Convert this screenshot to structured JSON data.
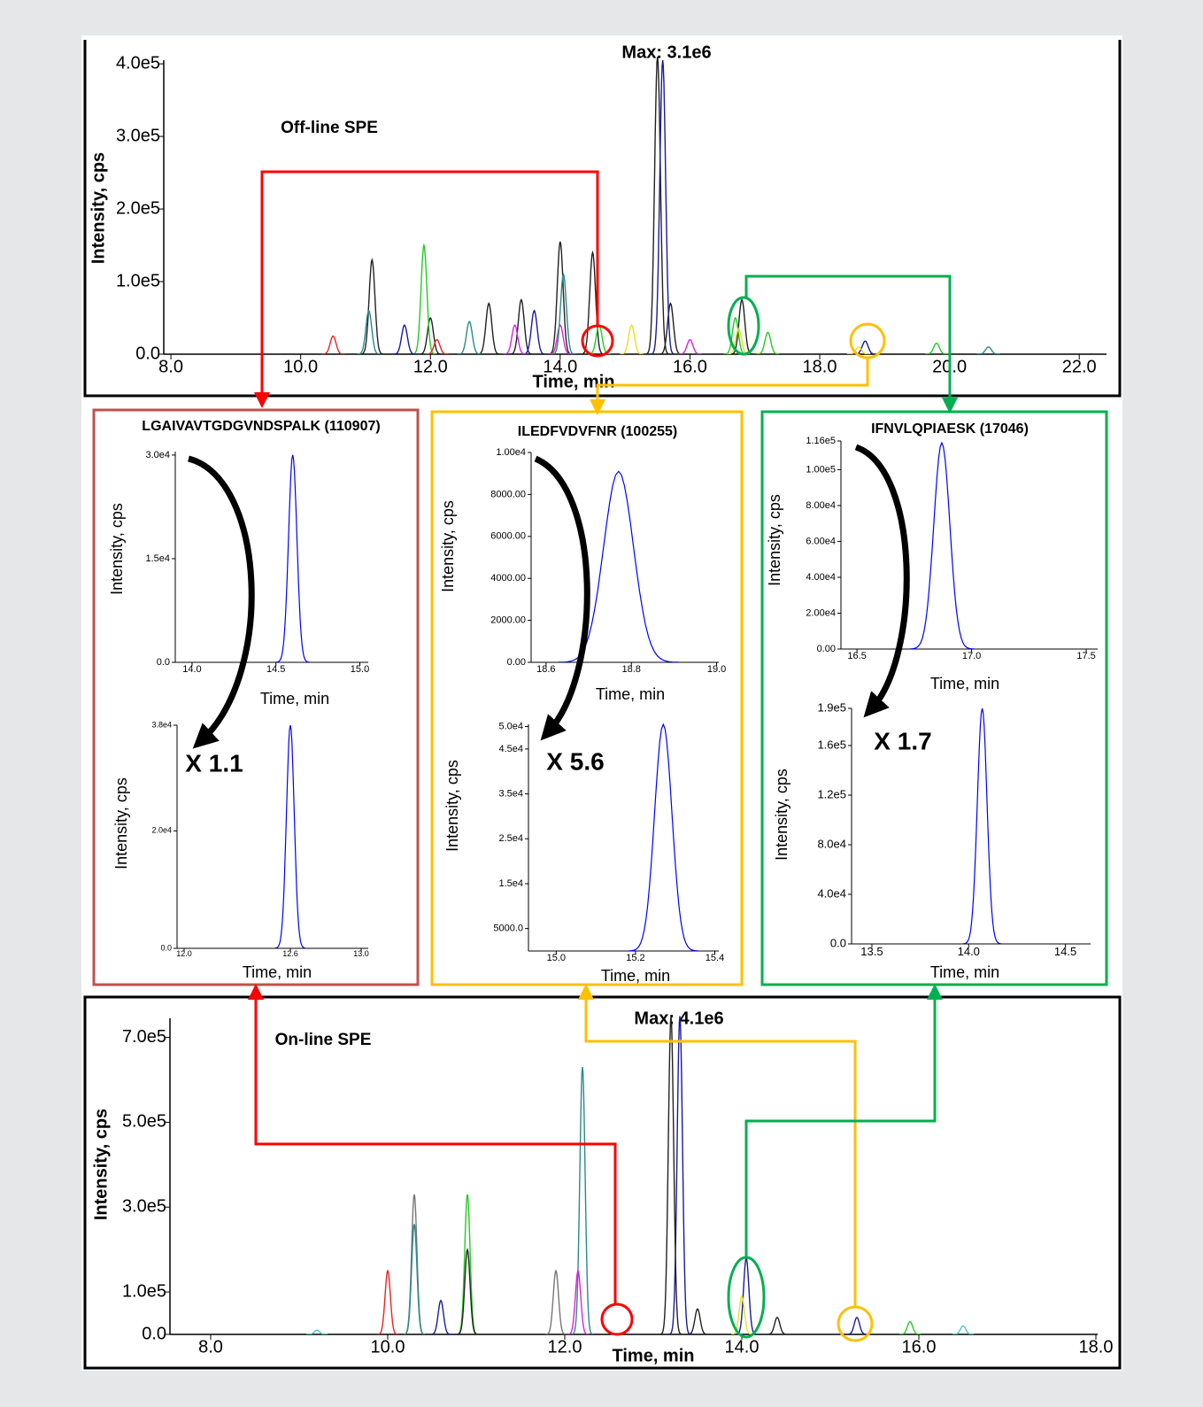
{
  "chart_data": [
    {
      "type": "peak",
      "title": "Off-line SPE",
      "annotation": "Max: 3.1e6",
      "xlabel": "Time, min",
      "ylabel": "Intensity, cps",
      "xlim": [
        7.89,
        22.42
      ],
      "ylim": [
        0,
        405000
      ],
      "xticks": [
        {
          "value": 8,
          "label": "8.0"
        },
        {
          "value": 10,
          "label": "10.0"
        },
        {
          "value": 12,
          "label": "12.0"
        },
        {
          "value": 14,
          "label": "14.0"
        },
        {
          "value": 16,
          "label": "16.0"
        },
        {
          "value": 18,
          "label": "18.0"
        },
        {
          "value": 20,
          "label": "20.0"
        },
        {
          "value": 22,
          "label": "22.0"
        }
      ],
      "yticks": [
        {
          "value": 0,
          "label": "0.0"
        },
        {
          "value": 100000,
          "label": "1.0e5"
        },
        {
          "value": 200000,
          "label": "2.0e5"
        },
        {
          "value": 300000,
          "label": "3.0e5"
        },
        {
          "value": 400000,
          "label": "4.0e5"
        }
      ],
      "series": [
        {
          "color": "#222222",
          "x": [
            11.1,
            12.0,
            12.9,
            13.4,
            14.0,
            14.5,
            15.5,
            15.7,
            16.8
          ],
          "values": [
            130000,
            50000,
            70000,
            75000,
            155000,
            140000,
            410000,
            70000,
            75000
          ]
        },
        {
          "color": "#22cc22",
          "x": [
            11.9,
            14.6,
            16.7,
            17.2,
            19.8
          ],
          "values": [
            150000,
            40000,
            50000,
            30000,
            15000
          ]
        },
        {
          "color": "#1a1aa0",
          "x": [
            11.6,
            13.6,
            15.58,
            18.7
          ],
          "values": [
            40000,
            60000,
            405000,
            18000
          ]
        },
        {
          "color": "#ee2222",
          "x": [
            10.5,
            12.1
          ],
          "values": [
            25000,
            20000
          ]
        },
        {
          "color": "#dd22dd",
          "x": [
            13.3,
            14.0,
            16.0
          ],
          "values": [
            40000,
            40000,
            20000
          ]
        },
        {
          "color": "#2a8a8a",
          "x": [
            11.05,
            12.6,
            14.05,
            20.6
          ],
          "values": [
            60000,
            45000,
            110000,
            10000
          ]
        },
        {
          "color": "#e8e020",
          "x": [
            15.1,
            16.75,
            18.6
          ],
          "values": [
            40000,
            35000,
            10000
          ]
        }
      ]
    },
    {
      "type": "peak",
      "title": "On-line SPE",
      "annotation": "Max: 4.1e6",
      "xlabel": "Time, min",
      "ylabel": "Intensity, cps",
      "xlim": [
        7.54,
        18.02
      ],
      "ylim": [
        0,
        745000
      ],
      "xticks": [
        {
          "value": 8,
          "label": "8.0"
        },
        {
          "value": 10,
          "label": "10.0"
        },
        {
          "value": 12,
          "label": "12.0"
        },
        {
          "value": 14,
          "label": "14.0"
        },
        {
          "value": 16,
          "label": "16.0"
        },
        {
          "value": 18,
          "label": "18.0"
        }
      ],
      "yticks": [
        {
          "value": 0,
          "label": "0.0"
        },
        {
          "value": 100000,
          "label": "1.0e5"
        },
        {
          "value": 300000,
          "label": "3.0e5"
        },
        {
          "value": 500000,
          "label": "5.0e5"
        },
        {
          "value": 700000,
          "label": "7.0e5"
        }
      ],
      "series": [
        {
          "color": "#ee2222",
          "x": [
            10.0
          ],
          "values": [
            150000
          ]
        },
        {
          "color": "#777777",
          "x": [
            10.3,
            11.9
          ],
          "values": [
            330000,
            150000
          ]
        },
        {
          "color": "#2a8a8a",
          "x": [
            10.3,
            12.2
          ],
          "values": [
            260000,
            630000
          ]
        },
        {
          "color": "#1a1aa0",
          "x": [
            10.6,
            13.3,
            14.05,
            15.3
          ],
          "values": [
            80000,
            750000,
            180000,
            40000
          ]
        },
        {
          "color": "#22cc22",
          "x": [
            10.9,
            15.9
          ],
          "values": [
            330000,
            30000
          ]
        },
        {
          "color": "#222222",
          "x": [
            10.9,
            13.2,
            13.5,
            14.4
          ],
          "values": [
            200000,
            750000,
            60000,
            40000
          ]
        },
        {
          "color": "#dd22dd",
          "x": [
            12.15
          ],
          "values": [
            150000
          ]
        },
        {
          "color": "#e8e020",
          "x": [
            14.0
          ],
          "values": [
            90000
          ]
        },
        {
          "color": "#44cccc",
          "x": [
            9.2,
            16.5
          ],
          "values": [
            10000,
            20000
          ]
        }
      ]
    },
    {
      "type": "peak",
      "title": "LGAIVAVTGDGVNDSPALK (110907)",
      "title_color": "#ff0000",
      "xlabel": "Time, min",
      "ylabel": "Intensity, cps",
      "xlim": [
        13.9,
        15.05
      ],
      "ylim": [
        0,
        30500
      ],
      "xticks": [
        {
          "value": 14,
          "label": "14.0"
        },
        {
          "value": 14.5,
          "label": "14.5"
        },
        {
          "value": 15,
          "label": "15.0"
        }
      ],
      "yticks": [
        {
          "value": 0,
          "label": "0.0"
        },
        {
          "value": 15000,
          "label": "1.5e4"
        },
        {
          "value": 30000,
          "label": "3.0e4"
        }
      ],
      "series": [
        {
          "color": "#0000ff",
          "x": [
            14.6
          ],
          "values": [
            30000
          ]
        }
      ]
    },
    {
      "type": "peak",
      "annotation": "X 1.1",
      "xlabel": "Time, min",
      "ylabel": "Intensity, cps",
      "xlim": [
        11.96,
        13.04
      ],
      "ylim": [
        0,
        38000
      ],
      "xticks": [
        {
          "value": 12,
          "label": "12.0"
        },
        {
          "value": 12.6,
          "label": "12.6"
        },
        {
          "value": 13,
          "label": "13.0"
        }
      ],
      "yticks": [
        {
          "value": 0,
          "label": "0.0"
        },
        {
          "value": 20000,
          "label": "2.0e4"
        },
        {
          "value": 38000,
          "label": "3.8e4"
        }
      ],
      "series": [
        {
          "color": "#0000ff",
          "x": [
            12.6
          ],
          "values": [
            38000
          ]
        }
      ]
    },
    {
      "type": "peak",
      "title": "ILEDFVDVFNR (100255)",
      "title_color": "#ffc000",
      "xlabel": "Time, min",
      "ylabel": "Intensity, cps",
      "xlim": [
        18.565,
        19.005
      ],
      "ylim": [
        0,
        10000
      ],
      "xticks": [
        {
          "value": 18.6,
          "label": "18.6"
        },
        {
          "value": 18.8,
          "label": "18.8"
        },
        {
          "value": 19,
          "label": "19.0"
        }
      ],
      "yticks": [
        {
          "value": 0,
          "label": "0.00"
        },
        {
          "value": 2000,
          "label": "2000.00"
        },
        {
          "value": 4000,
          "label": "4000.00"
        },
        {
          "value": 6000,
          "label": "6000.00"
        },
        {
          "value": 8000,
          "label": "8000.00"
        },
        {
          "value": 10000,
          "label": "1.00e4"
        }
      ],
      "series": [
        {
          "color": "#0000ff",
          "x": [
            18.77
          ],
          "values": [
            9100
          ]
        }
      ]
    },
    {
      "type": "peak",
      "annotation": "X 5.6",
      "xlabel": "Time, min",
      "ylabel": "Intensity, cps",
      "xlim": [
        14.93,
        15.41
      ],
      "ylim": [
        0,
        50500
      ],
      "xticks": [
        {
          "value": 15,
          "label": "15.0"
        },
        {
          "value": 15.2,
          "label": "15.2"
        },
        {
          "value": 15.4,
          "label": "15.4"
        }
      ],
      "yticks": [
        {
          "value": 5000,
          "label": "5000.0"
        },
        {
          "value": 15000,
          "label": "1.5e4"
        },
        {
          "value": 25000,
          "label": "2.5e4"
        },
        {
          "value": 35000,
          "label": "3.5e4"
        },
        {
          "value": 45000,
          "label": "4.5e4"
        },
        {
          "value": 50000,
          "label": "5.0e4"
        }
      ],
      "series": [
        {
          "color": "#0000ff",
          "x": [
            15.27
          ],
          "values": [
            50500
          ]
        }
      ]
    },
    {
      "type": "peak",
      "title": "IFNVLQPIAESK (17046)",
      "title_color": "#00b050",
      "xlabel": "Time, min",
      "ylabel": "Intensity, cps",
      "xlim": [
        16.43,
        17.55
      ],
      "ylim": [
        0,
        116000
      ],
      "xticks": [
        {
          "value": 16.5,
          "label": "16.5"
        },
        {
          "value": 17,
          "label": "17.0"
        },
        {
          "value": 17.5,
          "label": "17.5"
        }
      ],
      "yticks": [
        {
          "value": 0,
          "label": "0.00"
        },
        {
          "value": 20000,
          "label": "2.00e4"
        },
        {
          "value": 40000,
          "label": "4.00e4"
        },
        {
          "value": 60000,
          "label": "6.00e4"
        },
        {
          "value": 80000,
          "label": "8.00e4"
        },
        {
          "value": 100000,
          "label": "1.00e5"
        },
        {
          "value": 116000,
          "label": "1.16e5"
        }
      ],
      "series": [
        {
          "color": "#0000ff",
          "x": [
            16.87
          ],
          "values": [
            115000
          ]
        }
      ]
    },
    {
      "type": "peak",
      "annotation": "X 1.7",
      "xlabel": "Time, min",
      "ylabel": "Intensity, cps",
      "xlim": [
        13.395,
        14.63
      ],
      "ylim": [
        0,
        190000
      ],
      "xticks": [
        {
          "value": 13.5,
          "label": "13.5"
        },
        {
          "value": 14,
          "label": "14.0"
        },
        {
          "value": 14.5,
          "label": "14.5"
        }
      ],
      "yticks": [
        {
          "value": 0,
          "label": "0.0"
        },
        {
          "value": 40000,
          "label": "4.0e4"
        },
        {
          "value": 80000,
          "label": "8.0e4"
        },
        {
          "value": 120000,
          "label": "1.2e5"
        },
        {
          "value": 160000,
          "label": "1.6e5"
        },
        {
          "value": 190000,
          "label": "1.9e5"
        }
      ],
      "series": [
        {
          "color": "#0000ff",
          "x": [
            14.07
          ],
          "values": [
            190000
          ]
        }
      ]
    }
  ]
}
